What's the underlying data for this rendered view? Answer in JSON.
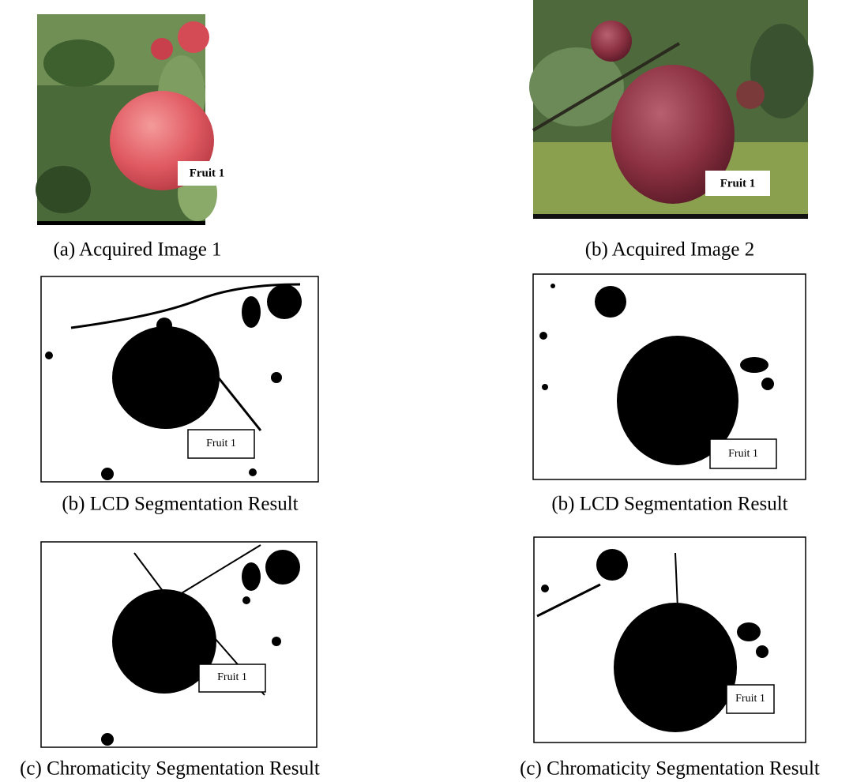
{
  "panels": [
    {
      "caption": "(a) Acquired Image 1",
      "label": "Fruit 1"
    },
    {
      "caption": "(b) Acquired Image 2",
      "label": "Fruit 1"
    },
    {
      "caption": "(b) LCD Segmentation Result",
      "label": "Fruit 1"
    },
    {
      "caption": "(b) LCD Segmentation Result",
      "label": "Fruit 1"
    },
    {
      "caption": "(c) Chromaticity Segmentation Result",
      "label": "Fruit 1"
    },
    {
      "caption": "(c) Chromaticity Segmentation Result",
      "label": "Fruit 1"
    }
  ]
}
